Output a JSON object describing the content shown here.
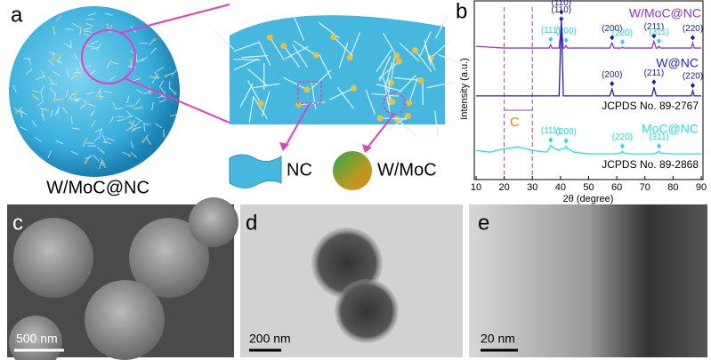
{
  "panels": {
    "a": {
      "label": "a",
      "caption": "W/MoC@NC",
      "legend_nc": "NC",
      "legend_wmoc": "W/MoC"
    },
    "b": {
      "label": "b"
    },
    "c": {
      "label": "c",
      "scale_bar": "500 nm"
    },
    "d": {
      "label": "d",
      "scale_bar": "200 nm"
    },
    "e": {
      "label": "e",
      "scale_bar": "20 nm"
    }
  },
  "chart_data": {
    "type": "line",
    "x_label": "2θ  (degree)",
    "y_label": "Intensity (a.u.)",
    "xlim": [
      10,
      90
    ],
    "xticks": [
      10,
      20,
      30,
      40,
      50,
      60,
      70,
      80,
      90
    ],
    "ylim": [
      0,
      100
    ],
    "x": [
      10,
      15,
      20,
      25,
      30,
      35,
      36,
      36.5,
      37,
      39.5,
      40.3,
      41,
      41.5,
      42,
      42.5,
      45,
      50,
      57.5,
      58.3,
      59,
      61.5,
      62,
      62.5,
      65,
      70,
      72.5,
      73.2,
      74,
      74.5,
      75,
      75.5,
      80,
      86.5,
      87,
      87.5,
      90
    ],
    "series": [
      {
        "name": "W/MoC@NC",
        "color": "#9b30d9",
        "values": [
          77,
          76.5,
          76,
          76,
          76,
          76,
          76,
          78,
          76,
          76,
          90,
          76,
          76,
          77.5,
          76,
          76,
          76,
          76,
          79,
          76,
          76,
          76.5,
          76,
          76,
          76,
          76,
          80,
          76,
          76,
          77,
          76,
          76,
          76,
          79,
          76,
          76
        ],
        "annotation": "",
        "peaks": [
          {
            "label": "(110)",
            "x": 40.3,
            "color": "#1a1aa0"
          },
          {
            "label": "(111)",
            "x": 36.5,
            "color": "#1fd8e0"
          },
          {
            "label": "(200)",
            "x": 42,
            "color": "#1fd8e0"
          },
          {
            "label": "(200)",
            "x": 58.3,
            "color": "#1a1aa0"
          },
          {
            "label": "(220)",
            "x": 62,
            "color": "#1fd8e0"
          },
          {
            "label": "(211)",
            "x": 73.2,
            "color": "#1a1aa0"
          },
          {
            "label": "(311)",
            "x": 75,
            "color": "#1fd8e0"
          },
          {
            "label": "(220)",
            "x": 87,
            "color": "#1a1aa0"
          }
        ]
      },
      {
        "name": "W@NC",
        "color": "#1f1fc8",
        "values": [
          48,
          48,
          48,
          48,
          48,
          48,
          48,
          48,
          48,
          48,
          94,
          48,
          48,
          48,
          48,
          48,
          48,
          48,
          52,
          48,
          48,
          48,
          48,
          48,
          48,
          48,
          53,
          48,
          48,
          48,
          48,
          48,
          48,
          51,
          48,
          48
        ],
        "annotation": "JCPDS No. 89-2767",
        "peaks": [
          {
            "label": "(110)",
            "x": 40.3,
            "color": "#1a1aa0"
          },
          {
            "label": "(200)",
            "x": 58.3,
            "color": "#1a1aa0"
          },
          {
            "label": "(211)",
            "x": 73.2,
            "color": "#1a1aa0"
          },
          {
            "label": "(220)",
            "x": 87,
            "color": "#1a1aa0"
          }
        ]
      },
      {
        "name": "MoC@NC",
        "color": "#1fe0e8",
        "values": [
          16,
          15,
          17,
          18,
          16,
          15,
          17,
          19,
          18,
          16,
          17,
          17,
          17,
          18.5,
          17,
          15,
          14,
          14,
          14,
          14,
          14.5,
          15.5,
          14.5,
          14,
          14,
          14,
          14,
          14.5,
          15,
          15.5,
          14.5,
          14,
          14,
          14,
          14,
          14
        ],
        "annotation": "JCPDS No. 89-2868",
        "peaks": [
          {
            "label": "(111)",
            "x": 36.5,
            "color": "#1fd8e0"
          },
          {
            "label": "(200)",
            "x": 42,
            "color": "#1fd8e0"
          },
          {
            "label": "(220)",
            "x": 62,
            "color": "#1fd8e0"
          },
          {
            "label": "(311)",
            "x": 75,
            "color": "#1fd8e0"
          }
        ]
      }
    ],
    "region": {
      "label": "C",
      "x": [
        20,
        30
      ],
      "color": "#f08000"
    }
  }
}
